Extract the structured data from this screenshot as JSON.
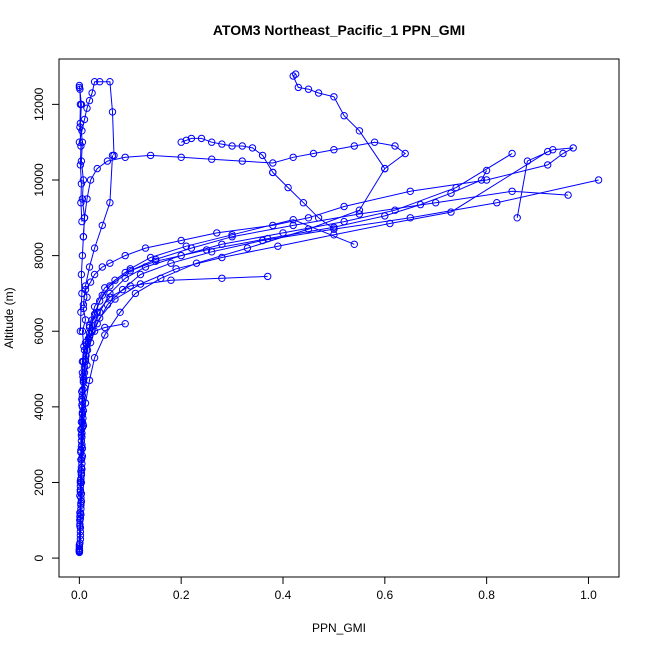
{
  "chart_data": {
    "type": "line",
    "title": "ATOM3 Northeast_Pacific_1 PPN_GMI",
    "xlabel": "PPN_GMI",
    "ylabel": "Altitude (m)",
    "xlim": [
      -0.04,
      1.06
    ],
    "ylim": [
      -500,
      13200
    ],
    "xticks": [
      0.0,
      0.2,
      0.4,
      0.6,
      0.8,
      1.0
    ],
    "xtick_labels": [
      "0.0",
      "0.2",
      "0.4",
      "0.6",
      "0.8",
      "1.0"
    ],
    "yticks": [
      0,
      2000,
      4000,
      6000,
      8000,
      10000,
      12000
    ],
    "ytick_labels": [
      "0",
      "2000",
      "4000",
      "6000",
      "8000",
      "10000",
      "12000"
    ],
    "grid": false,
    "legend": "none",
    "color": "#0000ff",
    "marker": "open-circle",
    "series": [
      {
        "x": [
          0.0,
          0.001,
          0.002,
          0.001,
          0.003,
          0.002,
          0.004,
          0.003,
          0.005,
          0.004,
          0.006,
          0.005,
          0.007,
          0.006,
          0.009,
          0.006,
          0.012,
          0.008,
          0.015,
          0.012,
          0.022,
          0.03,
          0.045,
          0.06,
          0.09,
          0.13,
          0.2,
          0.27,
          0.38,
          0.45,
          0.52,
          0.65,
          0.8,
          0.92,
          0.95,
          0.97,
          0.93,
          0.88,
          0.86
        ],
        "y": [
          150,
          400,
          800,
          1200,
          1600,
          2000,
          2400,
          2800,
          3200,
          3600,
          4000,
          4400,
          4800,
          5200,
          5600,
          6000,
          6300,
          6600,
          6900,
          7100,
          7300,
          7500,
          7700,
          7800,
          8000,
          8200,
          8400,
          8600,
          8800,
          9000,
          9300,
          9700,
          10000,
          10400,
          10700,
          10850,
          10800,
          10500,
          9000
        ]
      },
      {
        "x": [
          0.0,
          0.002,
          0.001,
          0.003,
          0.002,
          0.004,
          0.003,
          0.005,
          0.004,
          0.006,
          0.005,
          0.008,
          0.012,
          0.018,
          0.025,
          0.04,
          0.06,
          0.1,
          0.15,
          0.22,
          0.3,
          0.42,
          0.55,
          0.7,
          0.85,
          0.96
        ],
        "y": [
          200,
          600,
          1000,
          1400,
          1800,
          2200,
          2600,
          3000,
          3400,
          3800,
          4200,
          4700,
          5200,
          5800,
          6300,
          6800,
          7200,
          7600,
          7900,
          8200,
          8500,
          8800,
          9100,
          9400,
          9700,
          9600
        ]
      },
      {
        "x": [
          0.0,
          0.002,
          0.001,
          0.004,
          0.003,
          0.006,
          0.005,
          0.008,
          0.01,
          0.015,
          0.022,
          0.035,
          0.055,
          0.085,
          0.12,
          0.18,
          0.26,
          0.36,
          0.5,
          0.65,
          0.82,
          1.02
        ],
        "y": [
          300,
          700,
          1100,
          1500,
          2100,
          2700,
          3300,
          3900,
          4500,
          5100,
          5700,
          6200,
          6700,
          7100,
          7500,
          7800,
          8100,
          8400,
          8700,
          9000,
          9400,
          10000
        ]
      },
      {
        "x": [
          0.0,
          0.001,
          0.003,
          0.002,
          0.005,
          0.004,
          0.007,
          0.006,
          0.01,
          0.016,
          0.025,
          0.04,
          0.06,
          0.09,
          0.13,
          0.2,
          0.28,
          0.4,
          0.52,
          0.62,
          0.74,
          0.85
        ],
        "y": [
          250,
          900,
          1300,
          1900,
          2500,
          3100,
          3700,
          4300,
          4900,
          5500,
          6000,
          6500,
          7000,
          7400,
          7700,
          8000,
          8300,
          8600,
          8900,
          9200,
          9800,
          10700
        ]
      },
      {
        "x": [
          0.0,
          0.002,
          0.004,
          0.003,
          0.006,
          0.008,
          0.012,
          0.02,
          0.03,
          0.05,
          0.08,
          0.11,
          0.16,
          0.23,
          0.33,
          0.45,
          0.55,
          0.6,
          0.55,
          0.52,
          0.5,
          0.47,
          0.45,
          0.43,
          0.42,
          0.425
        ],
        "y": [
          180,
          500,
          1700,
          2300,
          2900,
          3500,
          4100,
          4700,
          5300,
          5900,
          6500,
          7000,
          7400,
          7800,
          8200,
          8700,
          9200,
          10300,
          11300,
          11700,
          12200,
          12300,
          12400,
          12450,
          12750,
          12800
        ]
      },
      {
        "x": [
          0.0,
          0.003,
          0.002,
          0.005,
          0.004,
          0.007,
          0.006,
          0.009,
          0.013,
          0.02,
          0.03,
          0.045,
          0.07,
          0.1,
          0.14,
          0.21,
          0.3,
          0.42,
          0.54
        ],
        "y": [
          220,
          1150,
          1750,
          2350,
          2950,
          3550,
          4150,
          4750,
          5350,
          5950,
          6450,
          6950,
          7350,
          7650,
          7950,
          8250,
          8550,
          8950,
          8300
        ]
      },
      {
        "x": [
          0.0,
          0.001,
          0.003,
          0.002,
          0.005,
          0.004,
          0.006,
          0.007,
          0.01,
          0.014,
          0.02,
          0.03,
          0.05,
          0.09,
          0.15,
          0.25,
          0.37,
          0.5,
          0.6,
          0.67,
          0.73,
          0.79,
          0.8
        ],
        "y": [
          160,
          850,
          1450,
          2050,
          2650,
          3250,
          3850,
          4450,
          5050,
          5650,
          6150,
          6650,
          7150,
          7550,
          7850,
          8150,
          8450,
          8750,
          9050,
          9350,
          9650,
          10000,
          10250
        ]
      },
      {
        "x": [
          0.0,
          0.002,
          0.001,
          0.004,
          0.003,
          0.006,
          0.005,
          0.008,
          0.012,
          0.02,
          0.04,
          0.07,
          0.12,
          0.19,
          0.28,
          0.39,
          0.5,
          0.61,
          0.73,
          0.92
        ],
        "y": [
          350,
          1050,
          1650,
          2250,
          2850,
          3450,
          4050,
          4650,
          5250,
          5850,
          6350,
          6850,
          7250,
          7650,
          7950,
          8250,
          8550,
          8850,
          9150,
          10750
        ]
      },
      {
        "x": [
          0.0,
          0.001,
          0.002,
          0.004,
          0.003,
          0.005,
          0.006,
          0.01,
          0.018,
          0.03,
          0.05,
          0.09
        ],
        "y": [
          190,
          1000,
          1800,
          2600,
          3400,
          4200,
          4900,
          5500,
          5800,
          6000,
          6100,
          6200
        ]
      },
      {
        "x": [
          0.0,
          0.002,
          0.004,
          0.003,
          0.006,
          0.005,
          0.008,
          0.012,
          0.02,
          0.035,
          0.06,
          0.1,
          0.18,
          0.28,
          0.37
        ],
        "y": [
          210,
          1200,
          2000,
          2800,
          3600,
          4400,
          5200,
          5700,
          6100,
          6500,
          6900,
          7200,
          7350,
          7400,
          7450
        ]
      },
      {
        "x": [
          0.002,
          0.003,
          0.005,
          0.004,
          0.006,
          0.008,
          0.01,
          0.015,
          0.022,
          0.035,
          0.055,
          0.09,
          0.14,
          0.2,
          0.26,
          0.32,
          0.38,
          0.42,
          0.46,
          0.5,
          0.54,
          0.58,
          0.62,
          0.64,
          0.6
        ],
        "y": [
          6000,
          6500,
          7000,
          7500,
          8000,
          8500,
          9000,
          9500,
          10000,
          10300,
          10500,
          10600,
          10650,
          10600,
          10550,
          10500,
          10450,
          10600,
          10700,
          10800,
          10900,
          11000,
          10900,
          10700,
          10300
        ]
      },
      {
        "x": [
          0.0,
          0.005,
          0.01,
          0.015,
          0.02,
          0.025,
          0.03,
          0.04,
          0.06,
          0.065,
          0.068
        ],
        "y": [
          11000,
          11300,
          11600,
          11900,
          12100,
          12300,
          12600,
          12600,
          12600,
          11800,
          10650
        ]
      },
      {
        "x": [
          0.065,
          0.06,
          0.045,
          0.03,
          0.02,
          0.012,
          0.008
        ],
        "y": [
          10650,
          9400,
          8800,
          8200,
          7700,
          7200,
          6700
        ]
      },
      {
        "x": [
          0.0,
          0.001,
          0.002,
          0.001,
          0.003,
          0.002,
          0.004,
          0.003,
          0.005
        ],
        "y": [
          12450,
          12400,
          12000,
          11400,
          10900,
          10400,
          9900,
          9400,
          8900
        ]
      },
      {
        "x": [
          0.0,
          0.004,
          0.002,
          0.006,
          0.004,
          0.008,
          0.006,
          0.01,
          0.008
        ],
        "y": [
          12500,
          12000,
          11500,
          11000,
          10500,
          10000,
          9500,
          9000,
          8500
        ]
      },
      {
        "x": [
          0.2,
          0.21,
          0.22,
          0.24,
          0.26,
          0.28,
          0.3,
          0.32,
          0.34,
          0.36,
          0.38
        ],
        "y": [
          11000,
          11050,
          11100,
          11100,
          11000,
          10950,
          10900,
          10900,
          10850,
          10650,
          10200
        ]
      },
      {
        "x": [
          0.38,
          0.41,
          0.44,
          0.47,
          0.5
        ],
        "y": [
          10200,
          9800,
          9400,
          9000,
          8700
        ]
      }
    ]
  }
}
